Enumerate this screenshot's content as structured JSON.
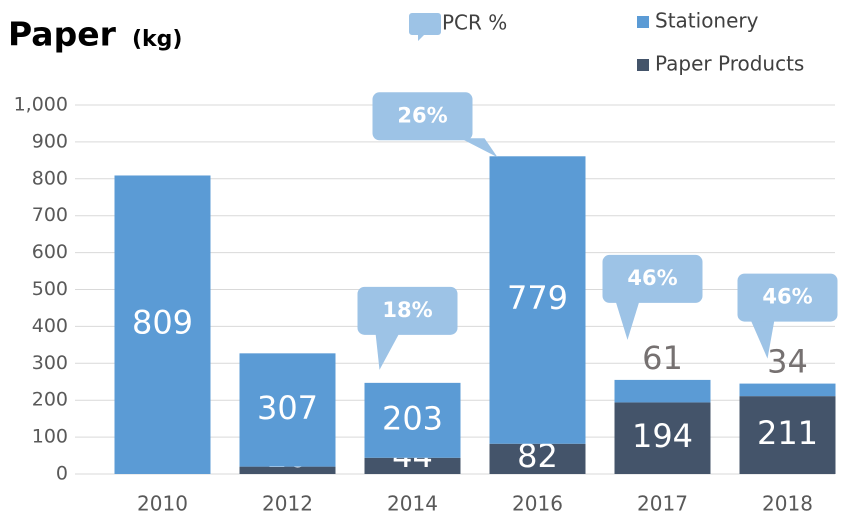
{
  "chart_data": {
    "type": "stacked_bar",
    "title": "Paper",
    "unit": "(kg)",
    "categories": [
      "2010",
      "2012",
      "2014",
      "2016",
      "2017",
      "2018"
    ],
    "series": [
      {
        "name": "Paper Products",
        "color": "#44546a",
        "values": [
          null,
          20,
          44,
          82,
          194,
          211
        ]
      },
      {
        "name": "Stationery",
        "color": "#5b9bd5",
        "values": [
          809,
          307,
          203,
          779,
          61,
          34
        ]
      }
    ],
    "pcr": {
      "name": "PCR %",
      "color": "#9dc3e6",
      "values": [
        null,
        null,
        18,
        26,
        46,
        46
      ],
      "value_labels": [
        null,
        null,
        "18%",
        "26%",
        "46%",
        "46%"
      ]
    },
    "ylim": [
      0,
      1000
    ],
    "yticks": [
      0,
      100,
      200,
      300,
      400,
      500,
      600,
      700,
      800,
      900,
      {
        "value": 1000,
        "label": "1,000"
      }
    ],
    "grid": true
  }
}
